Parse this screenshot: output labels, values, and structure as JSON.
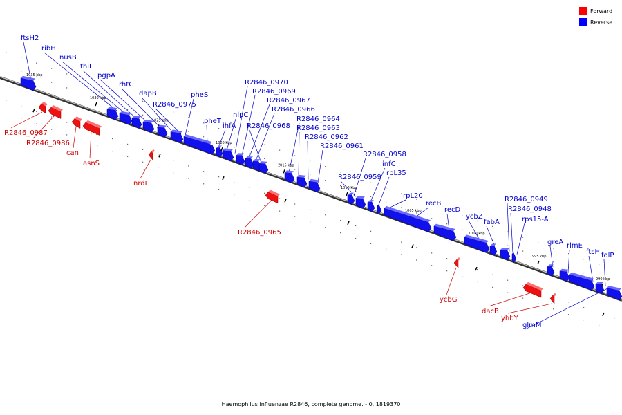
{
  "legend": {
    "forward_label": "Forward",
    "reverse_label": "Reverse",
    "forward_color": "#ff0000",
    "reverse_color": "#0000ff"
  },
  "caption": "Haemophilus influenzae R2846, complete genome. - 0..1819370",
  "scale_labels": [
    "1035 kbp",
    "1030 kbp",
    "1025 kbp",
    "1020 kbp",
    "1015 kbp",
    "1010 kbp",
    "1005 kbp",
    "1000 kbp",
    "995 kbp",
    "990 kbp"
  ],
  "reverse_genes": [
    "ftsH2",
    "ribH",
    "nusB",
    "thiL",
    "pgpA",
    "rhtC",
    "dapB",
    "R2846_0975",
    "pheS",
    "pheT",
    "ihfA",
    "nlpC",
    "R2846_0970",
    "R2846_0969",
    "R2846_0967",
    "R2846_0966",
    "R2846_0968",
    "R2846_0964",
    "R2846_0963",
    "R2846_0962",
    "R2846_0961",
    "R2846_0958",
    "infC",
    "rpL35",
    "R2846_0959",
    "rpL20",
    "recB",
    "recD",
    "ycbZ",
    "fabA",
    "R2846_0949",
    "R2846_0948",
    "rps15-A",
    "greA",
    "rlmE",
    "ftsH",
    "folP",
    "glmM"
  ],
  "forward_genes": [
    "R2846_0987",
    "R2846_0986",
    "can",
    "asnS",
    "nrdI",
    "R2846_0965",
    "ycbG",
    "dacB",
    "yhbY"
  ]
}
